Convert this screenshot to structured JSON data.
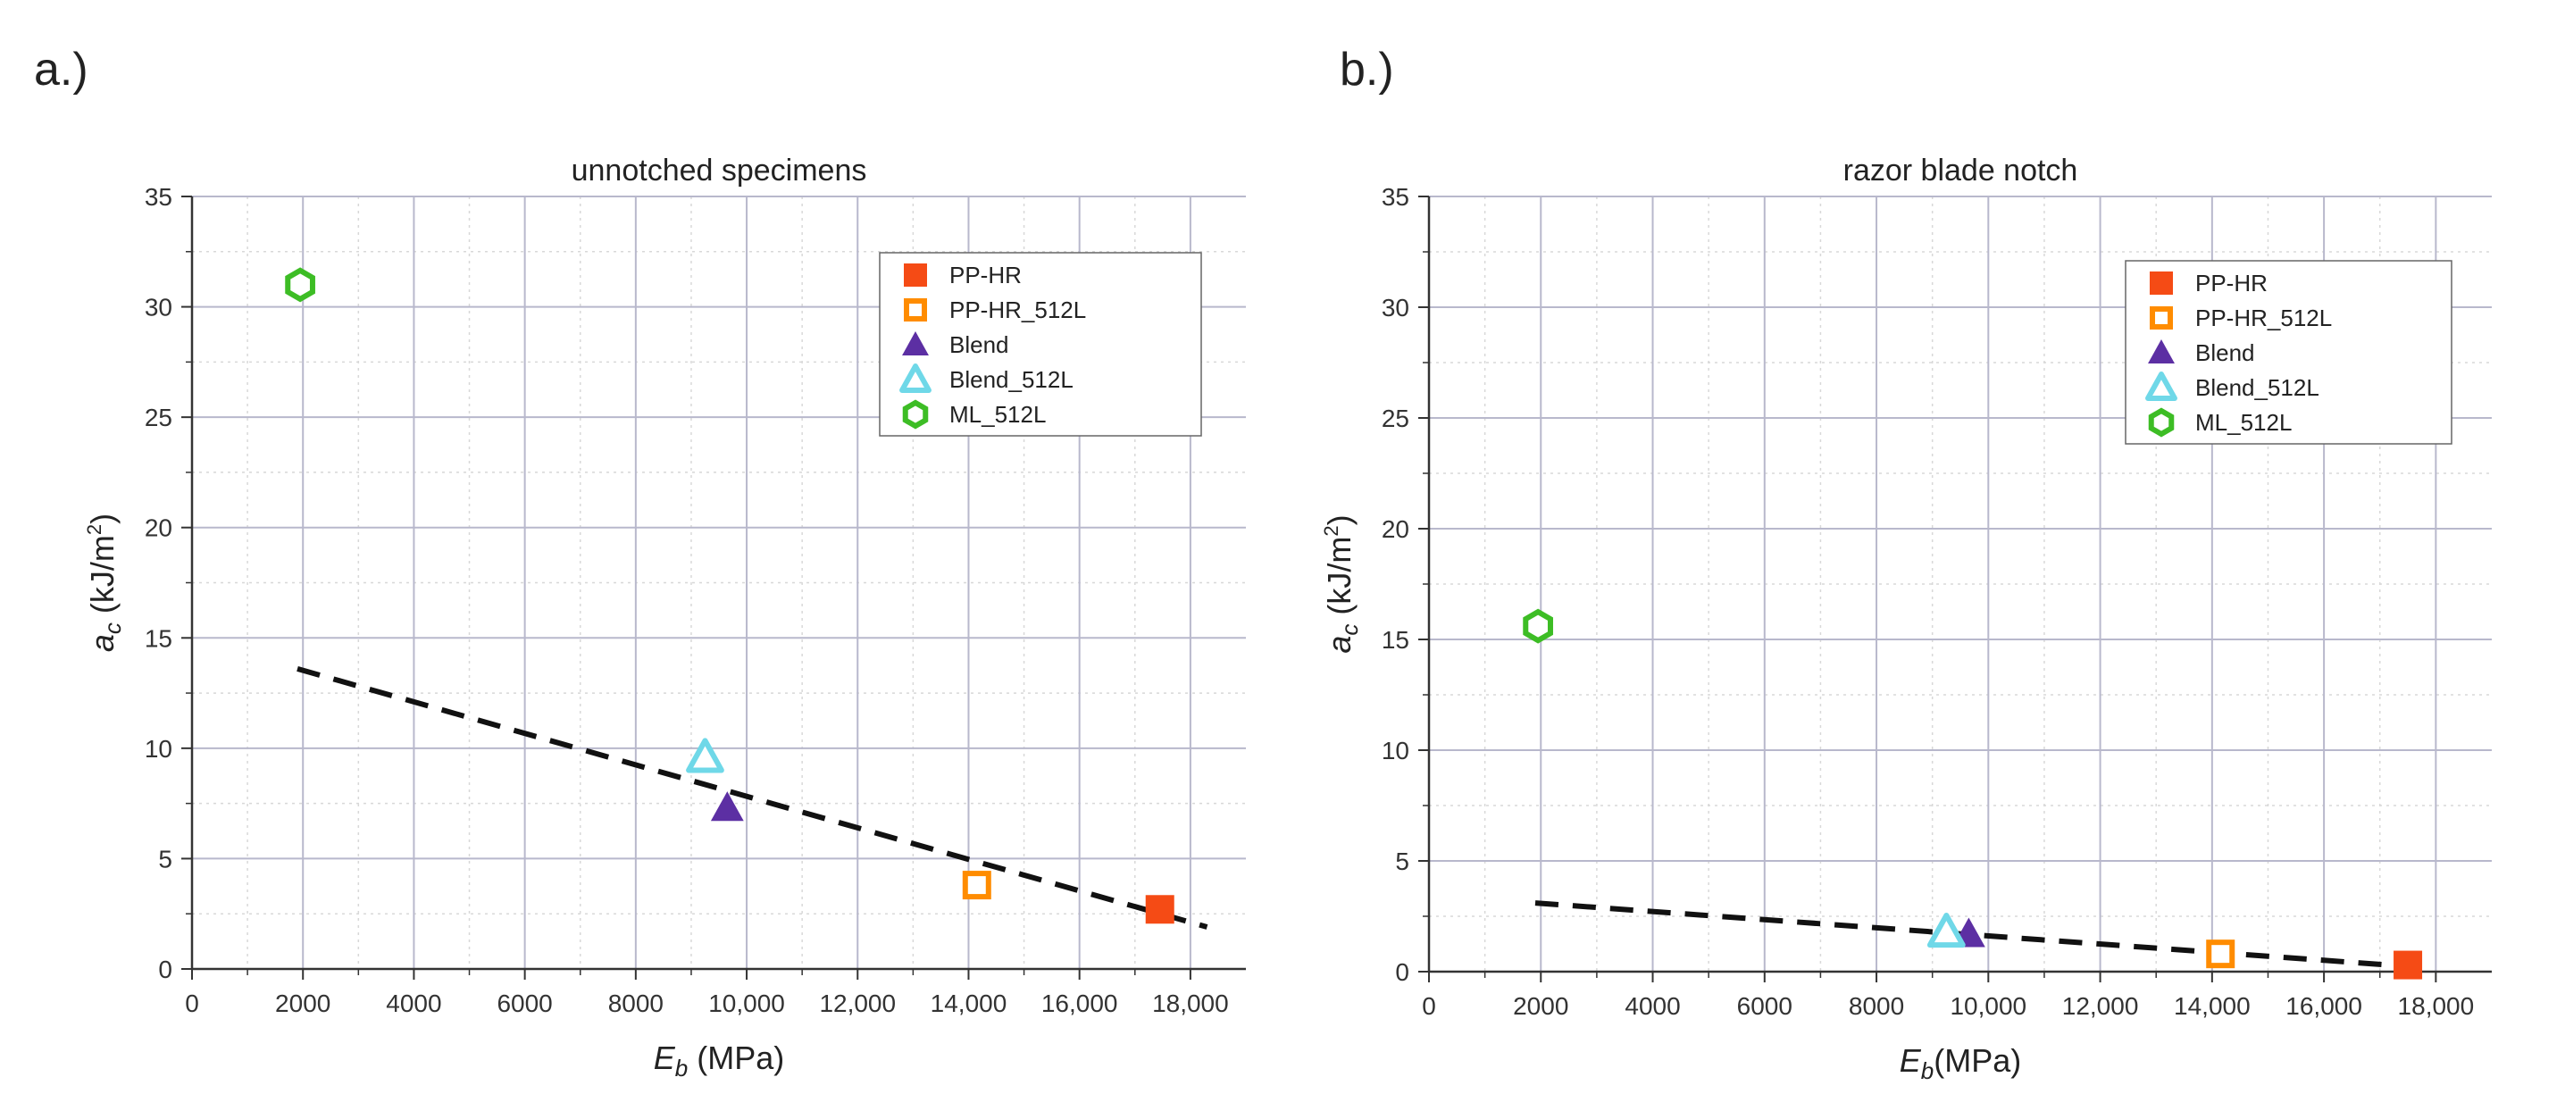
{
  "figure": {
    "panels": [
      "a.)",
      "b.)"
    ]
  },
  "colors": {
    "PP-HR": "#f54b15",
    "PP-HR_512L": "#ff8c00",
    "Blend": "#5c2fa3",
    "Blend_512L": "#6fd8e8",
    "ML_512L": "#3dbd25",
    "trend": "#111111",
    "major_grid": "#b8b8cc",
    "minor_grid": "#d8d8d8"
  },
  "chart_data": [
    {
      "type": "scatter",
      "panel_label": "a.)",
      "title": "unnotched specimens",
      "xlabel_main": "E",
      "xlabel_sub": "b",
      "xlabel_unit": " (MPa)",
      "ylabel_main": "a",
      "ylabel_sub": "c",
      "ylabel_unit": " (kJ/m",
      "ylabel_sup": "2",
      "ylabel_close": ")",
      "xlim": [
        0,
        19000
      ],
      "ylim": [
        0,
        35
      ],
      "xticks": [
        0,
        2000,
        4000,
        6000,
        8000,
        10000,
        12000,
        14000,
        16000,
        18000
      ],
      "xtick_labels": [
        "0",
        "2000",
        "4000",
        "6000",
        "8000",
        "10,000",
        "12,000",
        "14,000",
        "16,000",
        "18,000"
      ],
      "yticks": [
        0,
        5,
        10,
        15,
        20,
        25,
        30,
        35
      ],
      "ytick_labels": [
        "0",
        "5",
        "10",
        "15",
        "20",
        "25",
        "30",
        "35"
      ],
      "legend_position": "top-right",
      "series": [
        {
          "name": "PP-HR",
          "marker": "square-filled",
          "x": [
            17450
          ],
          "y": [
            2.7
          ]
        },
        {
          "name": "PP-HR_512L",
          "marker": "square-open",
          "x": [
            14150
          ],
          "y": [
            3.8
          ]
        },
        {
          "name": "Blend",
          "marker": "triangle-filled",
          "x": [
            9650
          ],
          "y": [
            7.3
          ]
        },
        {
          "name": "Blend_512L",
          "marker": "triangle-open",
          "x": [
            9250
          ],
          "y": [
            9.6
          ]
        },
        {
          "name": "ML_512L",
          "marker": "hexagon-open",
          "x": [
            1950
          ],
          "y": [
            31.0
          ]
        }
      ],
      "trendline": {
        "x": [
          1900,
          18300
        ],
        "y": [
          13.6,
          1.9
        ]
      }
    },
    {
      "type": "scatter",
      "panel_label": "b.)",
      "title": "razor blade notch",
      "xlabel_main": "E",
      "xlabel_sub": "b",
      "xlabel_unit": "(MPa)",
      "ylabel_main": "a",
      "ylabel_sub": "c",
      "ylabel_unit": " (kJ/m",
      "ylabel_sup": "2",
      "ylabel_close": ")",
      "xlim": [
        0,
        19000
      ],
      "ylim": [
        0,
        35
      ],
      "xticks": [
        0,
        2000,
        4000,
        6000,
        8000,
        10000,
        12000,
        14000,
        16000,
        18000
      ],
      "xtick_labels": [
        "0",
        "2000",
        "4000",
        "6000",
        "8000",
        "10,000",
        "12,000",
        "14,000",
        "16,000",
        "18,000"
      ],
      "yticks": [
        0,
        5,
        10,
        15,
        20,
        25,
        30,
        35
      ],
      "ytick_labels": [
        "0",
        "5",
        "10",
        "15",
        "20",
        "25",
        "30",
        "35"
      ],
      "legend_position": "top-right",
      "series": [
        {
          "name": "PP-HR",
          "marker": "square-filled",
          "x": [
            17500
          ],
          "y": [
            0.3
          ]
        },
        {
          "name": "PP-HR_512L",
          "marker": "square-open",
          "x": [
            14150
          ],
          "y": [
            0.8
          ]
        },
        {
          "name": "Blend",
          "marker": "triangle-filled",
          "x": [
            9650
          ],
          "y": [
            1.7
          ]
        },
        {
          "name": "Blend_512L",
          "marker": "triangle-open",
          "x": [
            9250
          ],
          "y": [
            1.8
          ]
        },
        {
          "name": "ML_512L",
          "marker": "hexagon-open",
          "x": [
            1950
          ],
          "y": [
            15.6
          ]
        }
      ],
      "trendline": {
        "x": [
          1900,
          17700
        ],
        "y": [
          3.1,
          0.2
        ]
      }
    }
  ]
}
